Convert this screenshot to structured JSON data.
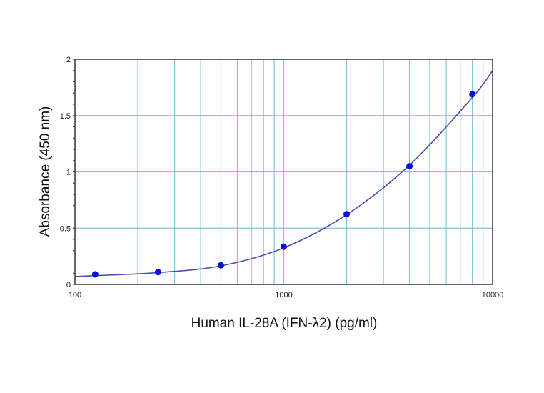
{
  "chart_data": {
    "type": "scatter",
    "title": "",
    "xlabel": "Human IL-28A (IFN-λ2) (pg/ml)",
    "ylabel": "Absorbance (450 nm)",
    "xscale": "log",
    "xlim": [
      100,
      10000
    ],
    "ylim": [
      0,
      2
    ],
    "xticks": [
      "100",
      "1000",
      "10000"
    ],
    "yticks": [
      "0",
      "0.5",
      "1",
      "1.5",
      "2"
    ],
    "grid": true,
    "legend": "none",
    "colors": {
      "points": "#0a12d8",
      "curve": "#4a4ab0",
      "grid": "#7cc6d6",
      "frame": "#333333"
    },
    "points": {
      "x": [
        125,
        250,
        500,
        1000,
        2000,
        4000,
        8000
      ],
      "y": [
        0.09,
        0.11,
        0.17,
        0.335,
        0.625,
        1.05,
        1.69
      ]
    },
    "fit_curve": {
      "x": [
        100,
        125,
        250,
        500,
        1000,
        2000,
        4000,
        8000,
        10000
      ],
      "y": [
        0.07,
        0.078,
        0.105,
        0.165,
        0.325,
        0.62,
        1.06,
        1.66,
        1.9
      ]
    }
  }
}
